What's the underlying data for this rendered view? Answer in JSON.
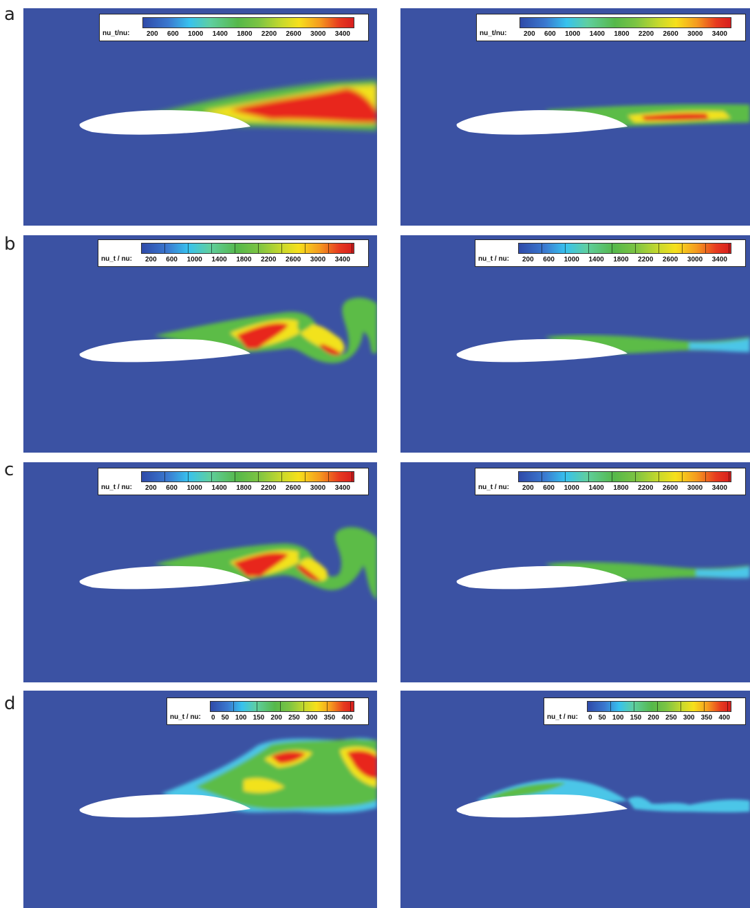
{
  "row_labels": [
    "a",
    "b",
    "c",
    "d"
  ],
  "legend_a": {
    "label": "nu_t/nu:",
    "ticks": [
      "200",
      "600",
      "1000",
      "1400",
      "1800",
      "2200",
      "2600",
      "3000",
      "3400"
    ]
  },
  "legend_bc": {
    "label": "nu_t / nu:",
    "ticks": [
      "200",
      "600",
      "1000",
      "1400",
      "1800",
      "2200",
      "2600",
      "3000",
      "3400"
    ]
  },
  "legend_d": {
    "label": "nu_t / nu:",
    "ticks": [
      "0",
      "50",
      "100",
      "150",
      "200",
      "250",
      "300",
      "350",
      "400"
    ]
  },
  "colors": {
    "background": "#3b52a3",
    "airfoil": "#ffffff",
    "green": "#5cbc47",
    "yellow": "#f2e21d",
    "red": "#e8261c",
    "cyan": "#4cc6e8"
  }
}
